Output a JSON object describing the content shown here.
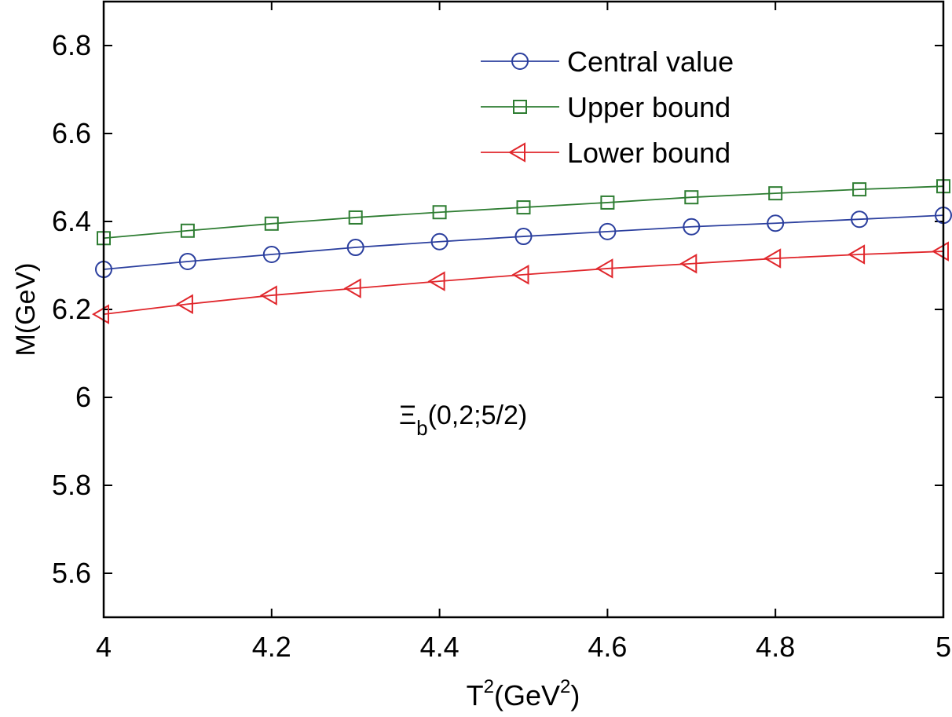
{
  "chart_data": {
    "type": "line",
    "title": "",
    "xlabel": "T",
    "xlabel_sup": "2",
    "xlabel_rest": "(GeV",
    "xlabel_sup2": "2",
    "xlabel_end": ")",
    "ylabel": "M(GeV)",
    "xlim": [
      4,
      5
    ],
    "ylim": [
      5.5,
      6.9
    ],
    "xticks": [
      4,
      4.2,
      4.4,
      4.6,
      4.8,
      5
    ],
    "xtick_labels": [
      "4",
      "4.2",
      "4.4",
      "4.6",
      "4.8",
      "5"
    ],
    "yticks": [
      5.6,
      5.8,
      6.0,
      6.2,
      6.4,
      6.6,
      6.8
    ],
    "ytick_labels": [
      "5.6",
      "5.8",
      "6",
      "6.2",
      "6.4",
      "6.6",
      "6.8"
    ],
    "grid": false,
    "legend_position": "top-right",
    "annotation": {
      "main": "Ξ",
      "sub": "b",
      "rest": "(0,2;5/2)"
    },
    "x": [
      4.0,
      4.1,
      4.2,
      4.3,
      4.4,
      4.5,
      4.6,
      4.7,
      4.8,
      4.9,
      5.0
    ],
    "series": [
      {
        "name": "Central value",
        "color": "#2b3f9e",
        "marker": "circle",
        "values": [
          6.291,
          6.309,
          6.325,
          6.341,
          6.354,
          6.366,
          6.377,
          6.388,
          6.396,
          6.405,
          6.414
        ]
      },
      {
        "name": "Upper bound",
        "color": "#2e7d32",
        "marker": "square",
        "values": [
          6.362,
          6.379,
          6.395,
          6.409,
          6.421,
          6.432,
          6.443,
          6.455,
          6.464,
          6.473,
          6.48
        ]
      },
      {
        "name": "Lower bound",
        "color": "#e0262b",
        "marker": "triangle-left",
        "values": [
          6.189,
          6.212,
          6.232,
          6.248,
          6.264,
          6.279,
          6.293,
          6.304,
          6.316,
          6.325,
          6.332
        ]
      }
    ]
  }
}
